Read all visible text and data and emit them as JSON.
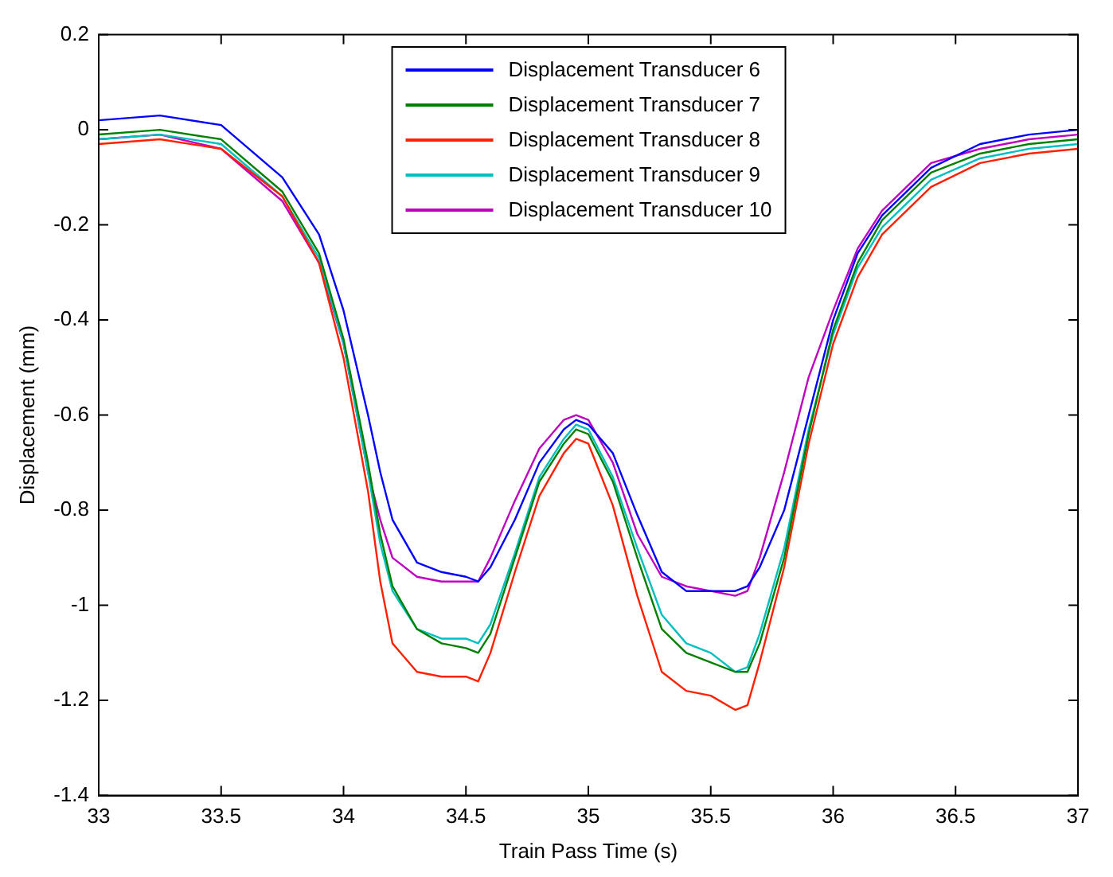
{
  "chart_data": {
    "type": "line",
    "xlabel": "Train Pass Time (s)",
    "ylabel": "Displacement (mm)",
    "x": [
      33,
      33.25,
      33.5,
      33.75,
      33.9,
      34.0,
      34.1,
      34.15,
      34.2,
      34.3,
      34.4,
      34.5,
      34.55,
      34.6,
      34.7,
      34.8,
      34.9,
      34.95,
      35.0,
      35.1,
      35.2,
      35.3,
      35.4,
      35.5,
      35.6,
      35.65,
      35.7,
      35.8,
      35.9,
      36.0,
      36.1,
      36.2,
      36.4,
      36.6,
      36.8,
      37
    ],
    "series": [
      {
        "name": "Displacement Transducer 6",
        "color": "#0000ff",
        "values": [
          0.02,
          0.03,
          0.01,
          -0.1,
          -0.22,
          -0.38,
          -0.6,
          -0.72,
          -0.82,
          -0.91,
          -0.93,
          -0.94,
          -0.95,
          -0.92,
          -0.82,
          -0.7,
          -0.63,
          -0.61,
          -0.62,
          -0.68,
          -0.81,
          -0.93,
          -0.97,
          -0.97,
          -0.97,
          -0.96,
          -0.92,
          -0.8,
          -0.6,
          -0.4,
          -0.26,
          -0.18,
          -0.08,
          -0.03,
          -0.01,
          0.0
        ]
      },
      {
        "name": "Displacement Transducer 7",
        "color": "#008000",
        "values": [
          -0.01,
          0.0,
          -0.02,
          -0.13,
          -0.26,
          -0.44,
          -0.7,
          -0.85,
          -0.96,
          -1.05,
          -1.08,
          -1.09,
          -1.1,
          -1.06,
          -0.9,
          -0.74,
          -0.66,
          -0.63,
          -0.64,
          -0.74,
          -0.9,
          -1.05,
          -1.1,
          -1.12,
          -1.14,
          -1.14,
          -1.08,
          -0.9,
          -0.64,
          -0.42,
          -0.28,
          -0.19,
          -0.09,
          -0.05,
          -0.03,
          -0.02
        ]
      },
      {
        "name": "Displacement Transducer 8",
        "color": "#ff2000",
        "values": [
          -0.03,
          -0.02,
          -0.04,
          -0.14,
          -0.28,
          -0.48,
          -0.76,
          -0.95,
          -1.08,
          -1.14,
          -1.15,
          -1.15,
          -1.16,
          -1.1,
          -0.93,
          -0.77,
          -0.68,
          -0.65,
          -0.66,
          -0.79,
          -0.98,
          -1.14,
          -1.18,
          -1.19,
          -1.22,
          -1.21,
          -1.12,
          -0.92,
          -0.66,
          -0.45,
          -0.31,
          -0.22,
          -0.12,
          -0.07,
          -0.05,
          -0.04
        ]
      },
      {
        "name": "Displacement Transducer 9",
        "color": "#00bfbf",
        "values": [
          -0.02,
          -0.01,
          -0.03,
          -0.14,
          -0.27,
          -0.45,
          -0.72,
          -0.87,
          -0.97,
          -1.05,
          -1.07,
          -1.07,
          -1.08,
          -1.04,
          -0.89,
          -0.73,
          -0.65,
          -0.62,
          -0.63,
          -0.73,
          -0.88,
          -1.02,
          -1.08,
          -1.1,
          -1.14,
          -1.13,
          -1.06,
          -0.88,
          -0.63,
          -0.43,
          -0.29,
          -0.205,
          -0.105,
          -0.06,
          -0.04,
          -0.03
        ]
      },
      {
        "name": "Displacement Transducer 10",
        "color": "#bf00bf",
        "values": [
          -0.02,
          -0.01,
          -0.04,
          -0.15,
          -0.28,
          -0.45,
          -0.72,
          -0.82,
          -0.9,
          -0.94,
          -0.95,
          -0.95,
          -0.95,
          -0.9,
          -0.78,
          -0.67,
          -0.61,
          -0.6,
          -0.61,
          -0.7,
          -0.85,
          -0.94,
          -0.96,
          -0.97,
          -0.98,
          -0.97,
          -0.9,
          -0.72,
          -0.52,
          -0.38,
          -0.25,
          -0.17,
          -0.07,
          -0.04,
          -0.02,
          -0.01
        ]
      }
    ],
    "xlim": [
      33,
      37
    ],
    "xticks": [
      33,
      33.5,
      34,
      34.5,
      35,
      35.5,
      36,
      36.5,
      37
    ],
    "ylim": [
      -1.4,
      0.2
    ],
    "yticks": [
      -1.4,
      -1.2,
      -1,
      -0.8,
      -0.6,
      -0.4,
      -0.2,
      0,
      0.2
    ],
    "grid": false,
    "legend": "top",
    "marker": "none",
    "line_style": "solid"
  }
}
